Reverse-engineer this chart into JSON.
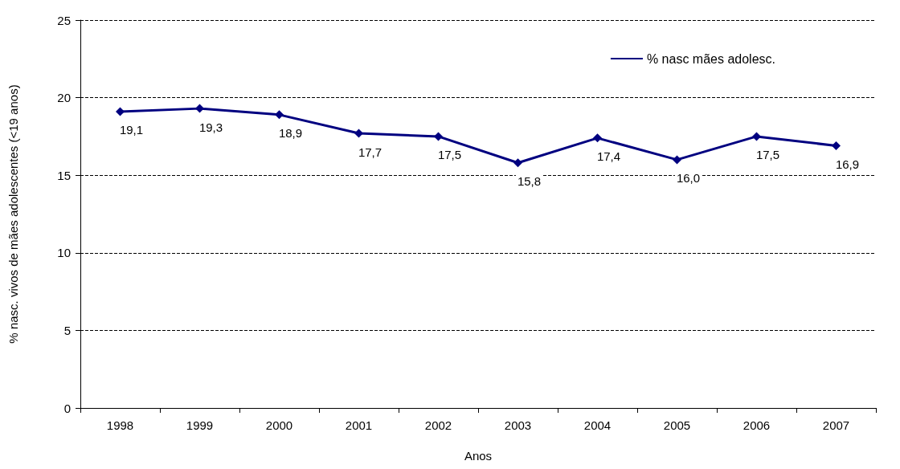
{
  "chart_data": {
    "type": "line",
    "xlabel": "Anos",
    "ylabel": "% nasc. vivos de mães adolescentes (<19 anos)",
    "categories": [
      "1998",
      "1999",
      "2000",
      "2001",
      "2002",
      "2003",
      "2004",
      "2005",
      "2006",
      "2007"
    ],
    "series": [
      {
        "name": "% nasc mães adolesc.",
        "color": "#000080",
        "values": [
          19.1,
          19.3,
          18.9,
          17.7,
          17.5,
          15.8,
          17.4,
          16.0,
          17.5,
          16.9
        ],
        "value_labels": [
          "19,1",
          "19,3",
          "18,9",
          "17,7",
          "17,5",
          "15,8",
          "17,4",
          "16,0",
          "17,5",
          "16,9"
        ]
      }
    ],
    "ylim": [
      0,
      25
    ],
    "yticks": [
      0,
      5,
      10,
      15,
      20,
      25
    ],
    "grid": "y",
    "legend": "top right",
    "marker": "diamond",
    "line_style": "solid"
  }
}
